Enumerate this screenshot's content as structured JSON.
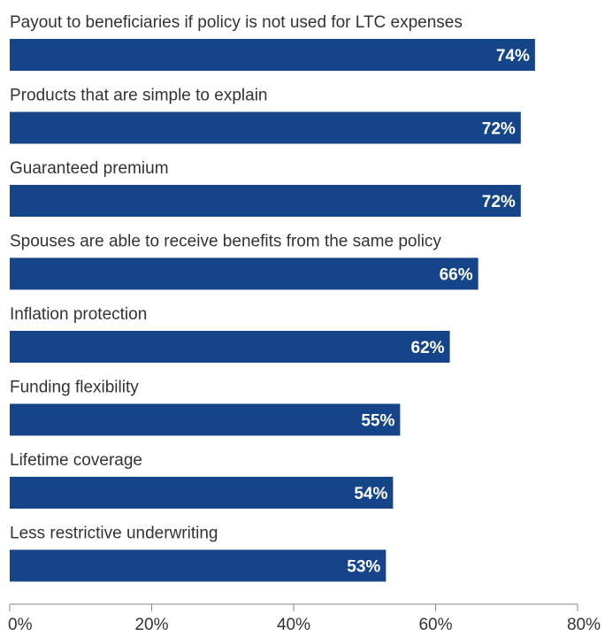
{
  "chart_data": {
    "type": "bar",
    "orientation": "horizontal",
    "categories": [
      "Payout to beneficiaries if policy is not used for LTC expenses",
      "Products that are simple to explain",
      "Guaranteed premium",
      "Spouses are able to receive benefits from the same policy",
      "Inflation protection",
      "Funding flexibility",
      "Lifetime coverage",
      "Less restrictive underwriting"
    ],
    "values": [
      74,
      72,
      72,
      66,
      62,
      55,
      54,
      53
    ],
    "value_labels": [
      "74%",
      "72%",
      "72%",
      "66%",
      "62%",
      "55%",
      "54%",
      "53%"
    ],
    "xlim": [
      0,
      80
    ],
    "x_ticks": [
      0,
      20,
      40,
      60,
      80
    ],
    "x_tick_labels": [
      "0%",
      "20%",
      "40%",
      "60%",
      "80%"
    ],
    "bar_color": "#154489",
    "value_label_color": "#ffffff",
    "text_color": "#333333",
    "grid": false,
    "legend": "none"
  }
}
